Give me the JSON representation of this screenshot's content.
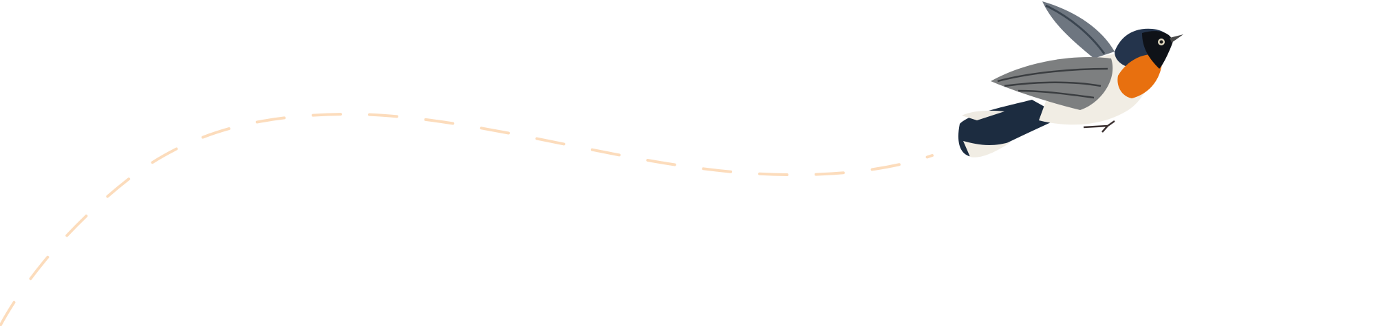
{
  "colors": {
    "background": "#ffffff",
    "flight_path": "#fcdcbc",
    "bird_orange": "#e8700f",
    "bird_blue": "#1f3550",
    "bird_wing": "#7d7f80",
    "bird_belly": "#f1ede4"
  },
  "icons": {
    "bird": "flycatcher-bird-illustration",
    "path": "dashed-flight-path"
  }
}
